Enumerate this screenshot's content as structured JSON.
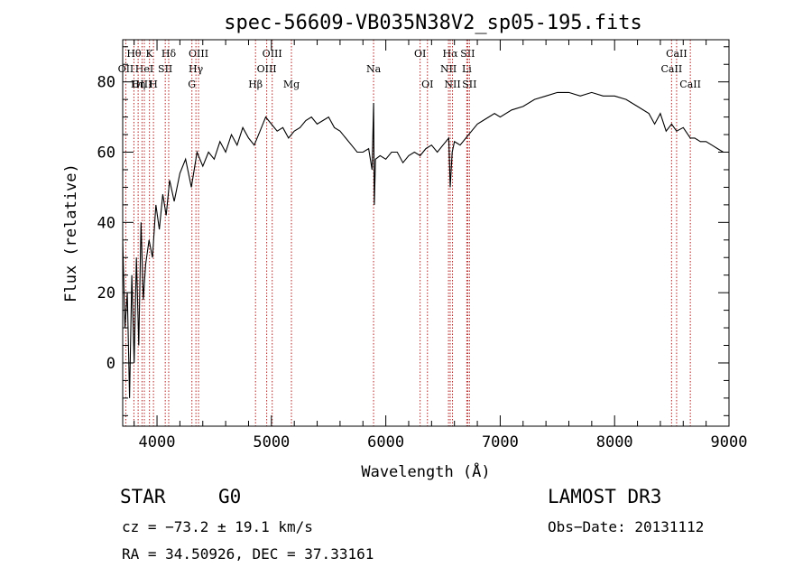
{
  "chart_data": {
    "type": "line",
    "title": "spec-56609-VB035N38V2_sp05-195.fits",
    "xlabel": "Wavelength (Å)",
    "ylabel": "Flux (relative)",
    "xlim": [
      3700,
      9000
    ],
    "ylim": [
      -18,
      92
    ],
    "xticks": [
      4000,
      5000,
      6000,
      7000,
      8000,
      9000
    ],
    "yticks": [
      0,
      20,
      40,
      60,
      80
    ],
    "line_color": "#000000",
    "marker_color": "#b22222",
    "series": [
      {
        "name": "flux",
        "x": [
          3700,
          3720,
          3740,
          3760,
          3780,
          3800,
          3820,
          3840,
          3860,
          3880,
          3900,
          3930,
          3960,
          3990,
          4020,
          4050,
          4080,
          4110,
          4150,
          4200,
          4250,
          4300,
          4350,
          4400,
          4450,
          4500,
          4550,
          4600,
          4650,
          4700,
          4750,
          4800,
          4850,
          4900,
          4950,
          5000,
          5050,
          5100,
          5150,
          5200,
          5250,
          5300,
          5350,
          5400,
          5450,
          5500,
          5550,
          5600,
          5650,
          5700,
          5750,
          5800,
          5850,
          5880,
          5893,
          5900,
          5910,
          5950,
          6000,
          6050,
          6100,
          6150,
          6200,
          6250,
          6300,
          6350,
          6400,
          6450,
          6500,
          6550,
          6563,
          6580,
          6600,
          6650,
          6700,
          6750,
          6800,
          6850,
          6900,
          6950,
          7000,
          7100,
          7200,
          7300,
          7400,
          7500,
          7600,
          7700,
          7800,
          7900,
          8000,
          8100,
          8200,
          8300,
          8350,
          8400,
          8450,
          8498,
          8542,
          8600,
          8662,
          8700,
          8750,
          8800,
          8850,
          8900,
          8950,
          9000
        ],
        "values": [
          35,
          10,
          20,
          -10,
          25,
          0,
          30,
          5,
          40,
          18,
          28,
          35,
          30,
          45,
          38,
          48,
          42,
          52,
          46,
          54,
          58,
          50,
          60,
          56,
          60,
          58,
          63,
          60,
          65,
          62,
          67,
          64,
          62,
          66,
          70,
          68,
          66,
          67,
          64,
          66,
          67,
          69,
          70,
          68,
          69,
          70,
          67,
          66,
          64,
          62,
          60,
          60,
          61,
          55,
          74,
          45,
          58,
          59,
          58,
          60,
          60,
          57,
          59,
          60,
          59,
          61,
          62,
          60,
          62,
          64,
          50,
          60,
          63,
          62,
          64,
          66,
          68,
          69,
          70,
          71,
          70,
          72,
          73,
          75,
          76,
          77,
          77,
          76,
          77,
          76,
          76,
          75,
          73,
          71,
          68,
          71,
          66,
          68,
          66,
          67,
          64,
          64,
          63,
          63,
          62,
          61,
          60,
          60
        ]
      }
    ],
    "line_markers": [
      {
        "label": "Hθ",
        "x": 3798,
        "row": 0
      },
      {
        "label": "K",
        "x": 3934,
        "row": 0
      },
      {
        "label": "Hδ",
        "x": 4102,
        "row": 0
      },
      {
        "label": "OII",
        "x": 3727,
        "row": 1
      },
      {
        "label": "HeI",
        "x": 3889,
        "row": 1
      },
      {
        "label": "SII",
        "x": 4072,
        "row": 1
      },
      {
        "label": "OIII",
        "x": 3869,
        "row": 2
      },
      {
        "label": "Hη",
        "x": 3835,
        "row": 2
      },
      {
        "label": "H",
        "x": 3969,
        "row": 2
      },
      {
        "label": "OIII",
        "x": 4363,
        "row": 0
      },
      {
        "label": "Hγ",
        "x": 4340,
        "row": 1
      },
      {
        "label": "G",
        "x": 4305,
        "row": 2
      },
      {
        "label": "OIII",
        "x": 5007,
        "row": 0
      },
      {
        "label": "OIII",
        "x": 4959,
        "row": 1
      },
      {
        "label": "Hβ",
        "x": 4861,
        "row": 2
      },
      {
        "label": "Mg",
        "x": 5175,
        "row": 2
      },
      {
        "label": "Na",
        "x": 5893,
        "row": 1
      },
      {
        "label": "OI",
        "x": 6300,
        "row": 0
      },
      {
        "label": "OI",
        "x": 6364,
        "row": 2
      },
      {
        "label": "Hα",
        "x": 6563,
        "row": 0
      },
      {
        "label": "SII",
        "x": 6716,
        "row": 0
      },
      {
        "label": "NII",
        "x": 6548,
        "row": 1
      },
      {
        "label": "Li",
        "x": 6708,
        "row": 1
      },
      {
        "label": "NII",
        "x": 6583,
        "row": 2
      },
      {
        "label": "SII",
        "x": 6731,
        "row": 2
      },
      {
        "label": "CaII",
        "x": 8542,
        "row": 0
      },
      {
        "label": "CaII",
        "x": 8498,
        "row": 1
      },
      {
        "label": "CaII",
        "x": 8662,
        "row": 2
      }
    ]
  },
  "info": {
    "class_label": "STAR",
    "subclass": "G0",
    "survey": "LAMOST DR3",
    "redshift_text": "cz = −73.2 ± 19.1 km/s",
    "obs_date_text": "Obs−Date: 20131112",
    "coords_text": "RA =  34.50926, DEC =  37.33161"
  }
}
